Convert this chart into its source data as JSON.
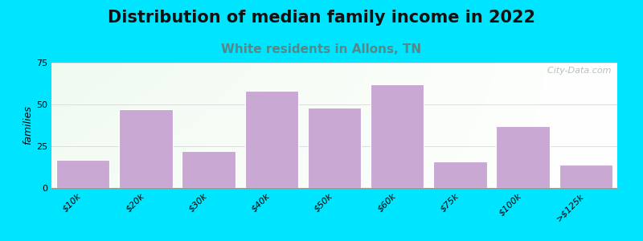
{
  "title": "Distribution of median family income in 2022",
  "subtitle": "White residents in Allons, TN",
  "ylabel": "families",
  "categories": [
    "$10k",
    "$20k",
    "$30k",
    "$40k",
    "$50k",
    "$60k",
    "$75k",
    "$100k",
    ">$125k"
  ],
  "values": [
    17,
    47,
    22,
    58,
    48,
    62,
    16,
    37,
    14
  ],
  "bar_color": "#c9a8d4",
  "bar_edgecolor": "#ffffff",
  "ylim": [
    0,
    75
  ],
  "yticks": [
    0,
    25,
    50,
    75
  ],
  "background_outer": "#00e5ff",
  "title_fontsize": 15,
  "subtitle_fontsize": 11,
  "subtitle_color": "#558888",
  "ylabel_fontsize": 9,
  "tick_fontsize": 8,
  "watermark_text": "  City-Data.com",
  "watermark_color": "#aab8aa",
  "grid_color": "#dddddd"
}
